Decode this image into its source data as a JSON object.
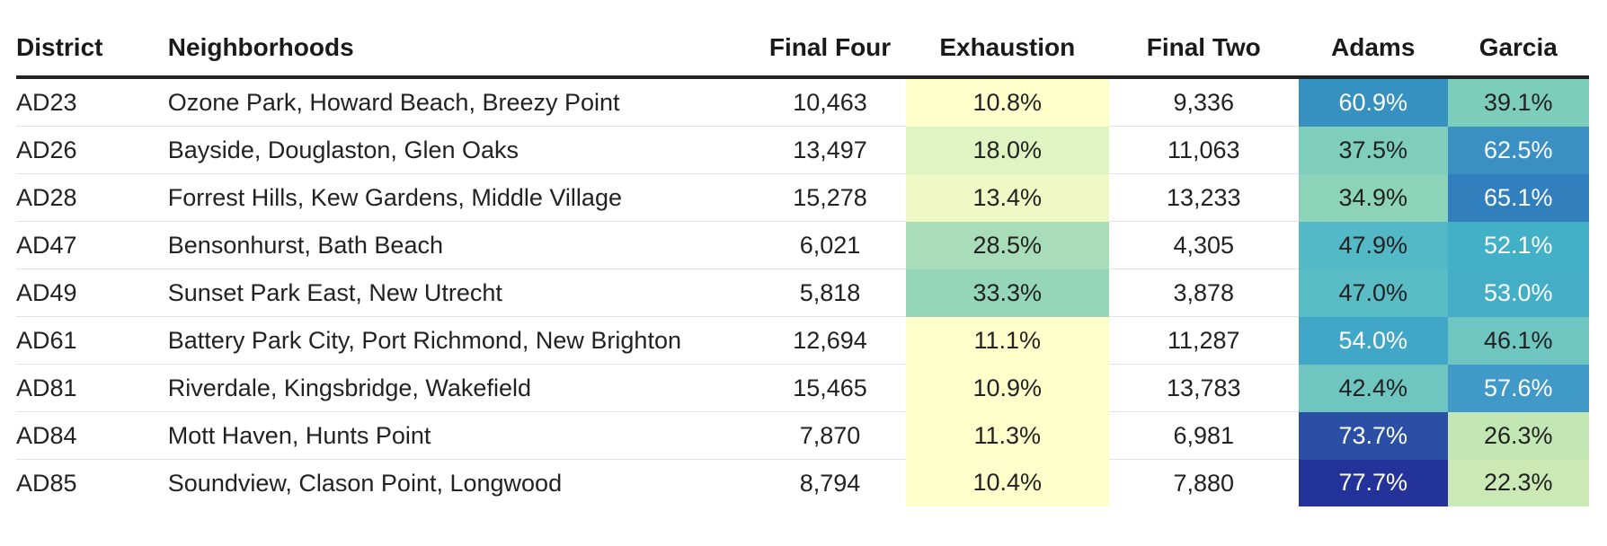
{
  "chart_data": {
    "type": "table",
    "columns": [
      "District",
      "Neighborhoods",
      "Final Four",
      "Exhaustion",
      "Final Two",
      "Adams",
      "Garcia"
    ],
    "rows": [
      {
        "district": "AD23",
        "neighborhoods": "Ozone Park, Howard Beach, Breezy Point",
        "final_four": "10,463",
        "exhaustion": "10.8%",
        "final_two": "9,336",
        "adams": "60.9%",
        "garcia": "39.1%"
      },
      {
        "district": "AD26",
        "neighborhoods": "Bayside, Douglaston, Glen Oaks",
        "final_four": "13,497",
        "exhaustion": "18.0%",
        "final_two": "11,063",
        "adams": "37.5%",
        "garcia": "62.5%"
      },
      {
        "district": "AD28",
        "neighborhoods": "Forrest Hills, Kew Gardens, Middle Village",
        "final_four": "15,278",
        "exhaustion": "13.4%",
        "final_two": "13,233",
        "adams": "34.9%",
        "garcia": "65.1%"
      },
      {
        "district": "AD47",
        "neighborhoods": "Bensonhurst, Bath Beach",
        "final_four": "6,021",
        "exhaustion": "28.5%",
        "final_two": "4,305",
        "adams": "47.9%",
        "garcia": "52.1%"
      },
      {
        "district": "AD49",
        "neighborhoods": "Sunset Park East, New Utrecht",
        "final_four": "5,818",
        "exhaustion": "33.3%",
        "final_two": "3,878",
        "adams": "47.0%",
        "garcia": "53.0%"
      },
      {
        "district": "AD61",
        "neighborhoods": "Battery Park City, Port Richmond, New Brighton",
        "final_four": "12,694",
        "exhaustion": "11.1%",
        "final_two": "11,287",
        "adams": "54.0%",
        "garcia": "46.1%"
      },
      {
        "district": "AD81",
        "neighborhoods": "Riverdale, Kingsbridge, Wakefield",
        "final_four": "15,465",
        "exhaustion": "10.9%",
        "final_two": "13,783",
        "adams": "42.4%",
        "garcia": "57.6%"
      },
      {
        "district": "AD84",
        "neighborhoods": "Mott Haven, Hunts Point",
        "final_four": "7,870",
        "exhaustion": "11.3%",
        "final_two": "6,981",
        "adams": "73.7%",
        "garcia": "26.3%"
      },
      {
        "district": "AD85",
        "neighborhoods": "Soundview, Clason Point, Longwood",
        "final_four": "8,794",
        "exhaustion": "10.4%",
        "final_two": "7,880",
        "adams": "77.7%",
        "garcia": "22.3%"
      }
    ],
    "heat_colors": {
      "exhaustion": [
        "#ffffcc",
        "#e0f3c3",
        "#f0f9c6",
        "#a9dcb8",
        "#95d5b9",
        "#ffffcc",
        "#ffffcc",
        "#ffffcc",
        "#ffffcc"
      ],
      "adams": [
        "#3690c0",
        "#7fcdbb",
        "#8cd3ba",
        "#54b9c6",
        "#5abdc5",
        "#41a7c8",
        "#6fc6c0",
        "#2c4fa6",
        "#24339a"
      ],
      "garcia": [
        "#7dcdbb",
        "#3a8fc3",
        "#3180bd",
        "#42b0c7",
        "#44aec6",
        "#6fc6c0",
        "#4099c6",
        "#c2e6b4",
        "#cbe9b5"
      ]
    },
    "text_colors": {
      "exhaustion": [
        "#222222",
        "#222222",
        "#222222",
        "#222222",
        "#222222",
        "#222222",
        "#222222",
        "#222222",
        "#222222"
      ],
      "adams": [
        "#ffffff",
        "#222222",
        "#222222",
        "#222222",
        "#222222",
        "#ffffff",
        "#222222",
        "#ffffff",
        "#ffffff"
      ],
      "garcia": [
        "#222222",
        "#ffffff",
        "#ffffff",
        "#ffffff",
        "#ffffff",
        "#222222",
        "#ffffff",
        "#222222",
        "#222222"
      ]
    }
  }
}
